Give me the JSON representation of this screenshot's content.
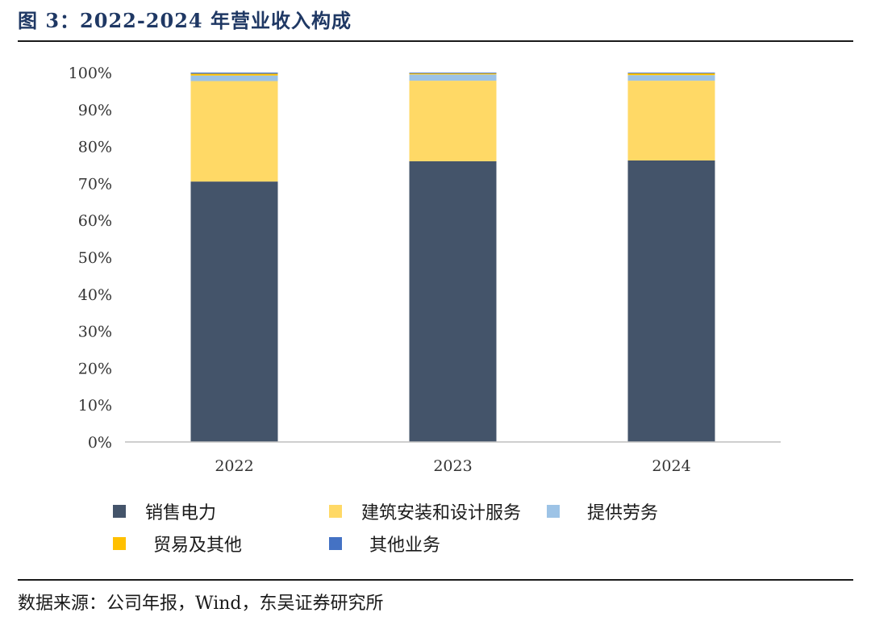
{
  "header": {
    "title": "图 3：2022-2024 年营业收入构成"
  },
  "footer": {
    "source": "数据来源：公司年报，Wind，东吴证券研究所"
  },
  "chart_data": {
    "type": "bar",
    "stacked": true,
    "categories": [
      "2022",
      "2023",
      "2024"
    ],
    "series": [
      {
        "name": "销售电力",
        "values": [
          70.5,
          76.0,
          76.2
        ],
        "color": "#44546a"
      },
      {
        "name": "建筑安装和设计服务",
        "values": [
          27.2,
          21.8,
          21.6
        ],
        "color": "#ffd966"
      },
      {
        "name": "提供劳务",
        "values": [
          1.5,
          1.7,
          1.5
        ],
        "color": "#9dc3e6"
      },
      {
        "name": "贸易及其他",
        "values": [
          0.5,
          0.3,
          0.5
        ],
        "color": "#ffc000"
      },
      {
        "name": "其他业务",
        "values": [
          0.3,
          0.2,
          0.2
        ],
        "color": "#4472c4"
      }
    ],
    "yticks": [
      "0%",
      "10%",
      "20%",
      "30%",
      "40%",
      "50%",
      "60%",
      "70%",
      "80%",
      "90%",
      "100%"
    ],
    "ylim": [
      0,
      100
    ],
    "grid": false,
    "legend_position": "bottom"
  }
}
